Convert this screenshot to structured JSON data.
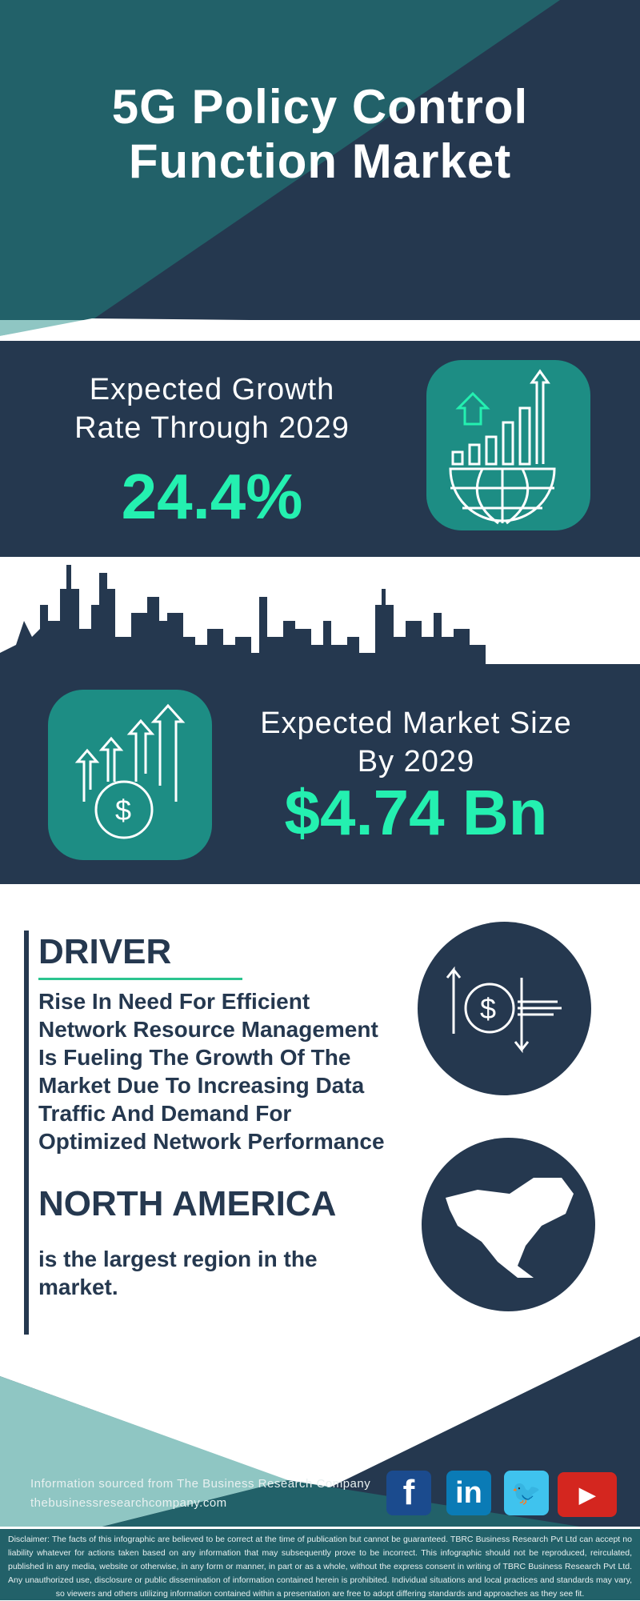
{
  "header": {
    "title_line1": "5G Policy Control",
    "title_line2": "Function Market"
  },
  "growth": {
    "label_line1": "Expected Growth",
    "label_line2": "Rate Through 2029",
    "value": "24.4%",
    "icon": "globe-bar-chart-icon"
  },
  "market": {
    "label_line1": "Expected Market Size",
    "label_line2": "By 2029",
    "value": "$4.74 Bn",
    "icon": "dollar-growth-arrows-icon"
  },
  "driver": {
    "heading": "DRIVER",
    "text": "Rise In Need For Efficient Network Resource Management Is Fueling The Growth Of The Market Due To Increasing Data Traffic And Demand For Optimized Network Performance",
    "icon": "dollar-exchange-icon"
  },
  "region": {
    "heading": "NORTH AMERICA",
    "text": "is the largest region in the market.",
    "icon": "north-america-map-icon"
  },
  "footer": {
    "source": "Information sourced from The Business Research Company",
    "website": "thebusinessresearchcompany.com",
    "social": [
      "facebook",
      "linkedin",
      "twitter",
      "youtube"
    ],
    "disclaimer": "Disclaimer: The facts of this infographic are believed to be correct at the time of publication but cannot be guaranteed. TBRC Business Research Pvt Ltd can accept no liability whatever for actions taken based on any information that may subsequently prove to be incorrect. This infographic should not be reproduced, reirculated, published in any media, website or otherwise, in any form or manner, in part or as a whole, without the express consent in writing of TBRC Business Research Pvt Ltd. Any unauthorized use, disclosure or public dissemination of information contained herein is prohibited. Individual situations and local practices and standards may vary, so viewers and others utilizing information contained within a presentation are free to adopt differing standards and approaches as they see fit."
  },
  "colors": {
    "navy": "#25384f",
    "teal": "#226169",
    "accent": "#24f0b0",
    "icon_bg": "#1d8d84",
    "light_teal": "#8fc6c3"
  }
}
